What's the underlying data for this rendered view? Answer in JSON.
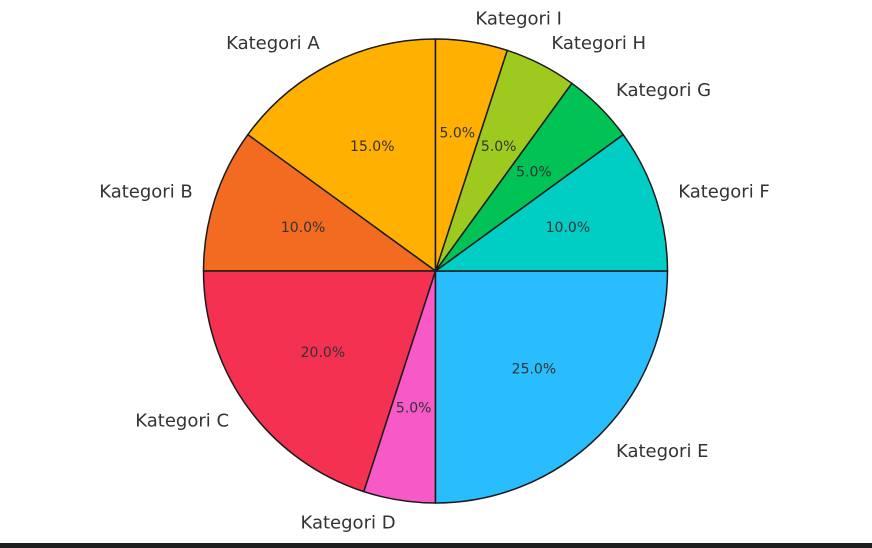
{
  "chart_data": {
    "type": "pie",
    "title": "",
    "slices": [
      {
        "label": "Kategori A",
        "value": 15.0,
        "pct_label": "15.0%",
        "color": "#FFB000"
      },
      {
        "label": "Kategori B",
        "value": 10.0,
        "pct_label": "10.0%",
        "color": "#F26B21"
      },
      {
        "label": "Kategori C",
        "value": 20.0,
        "pct_label": "20.0%",
        "color": "#F53152"
      },
      {
        "label": "Kategori D",
        "value": 5.0,
        "pct_label": "5.0%",
        "color": "#F759C6"
      },
      {
        "label": "Kategori E",
        "value": 25.0,
        "pct_label": "25.0%",
        "color": "#29BDFD"
      },
      {
        "label": "Kategori F",
        "value": 10.0,
        "pct_label": "10.0%",
        "color": "#00CDC3"
      },
      {
        "label": "Kategori G",
        "value": 5.0,
        "pct_label": "5.0%",
        "color": "#01C255"
      },
      {
        "label": "Kategori H",
        "value": 5.0,
        "pct_label": "5.0%",
        "color": "#9ECA1F"
      },
      {
        "label": "Kategori I",
        "value": 5.0,
        "pct_label": "5.0%",
        "color": "#FFB000"
      }
    ],
    "start_angle_deg": 90,
    "direction": "counterclockwise",
    "edge_color": "#1a1a1a",
    "legend": "none"
  }
}
